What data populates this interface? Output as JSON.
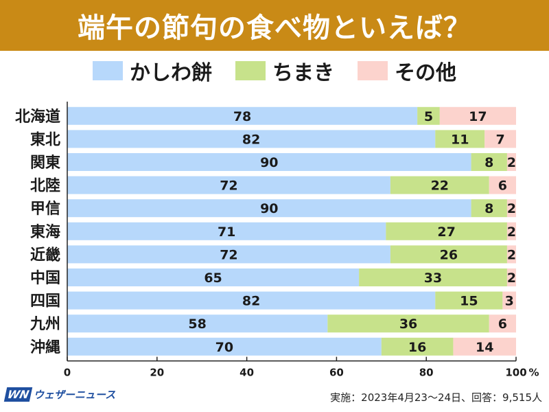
{
  "header": {
    "title": "端午の節句の食べ物といえば？"
  },
  "legend": [
    {
      "label": "かしわ餅",
      "color": "#b7d8fb"
    },
    {
      "label": "ちまき",
      "color": "#c7e28b"
    },
    {
      "label": "その他",
      "color": "#fcd3cd"
    }
  ],
  "chart_data": {
    "type": "bar",
    "orientation": "horizontal",
    "stacked": true,
    "categories": [
      "北海道",
      "東北",
      "関東",
      "北陸",
      "甲信",
      "東海",
      "近畿",
      "中国",
      "四国",
      "九州",
      "沖縄"
    ],
    "series": [
      {
        "name": "かしわ餅",
        "color": "#b7d8fb",
        "values": [
          78,
          82,
          90,
          72,
          90,
          71,
          72,
          65,
          82,
          58,
          70
        ]
      },
      {
        "name": "ちまき",
        "color": "#c7e28b",
        "values": [
          5,
          11,
          8,
          22,
          8,
          27,
          26,
          33,
          15,
          36,
          16
        ]
      },
      {
        "name": "その他",
        "color": "#fcd3cd",
        "values": [
          17,
          7,
          2,
          6,
          2,
          2,
          2,
          2,
          3,
          6,
          14
        ]
      }
    ],
    "xlim": [
      0,
      100
    ],
    "xticks": [
      0,
      20,
      40,
      60,
      80,
      100
    ],
    "xunit": "%",
    "grid": false
  },
  "footer": {
    "brand_logo": "WN",
    "brand_name": "ウェザーニュース",
    "note": "実施：2023年4月23〜24日、回答：9,515人"
  }
}
